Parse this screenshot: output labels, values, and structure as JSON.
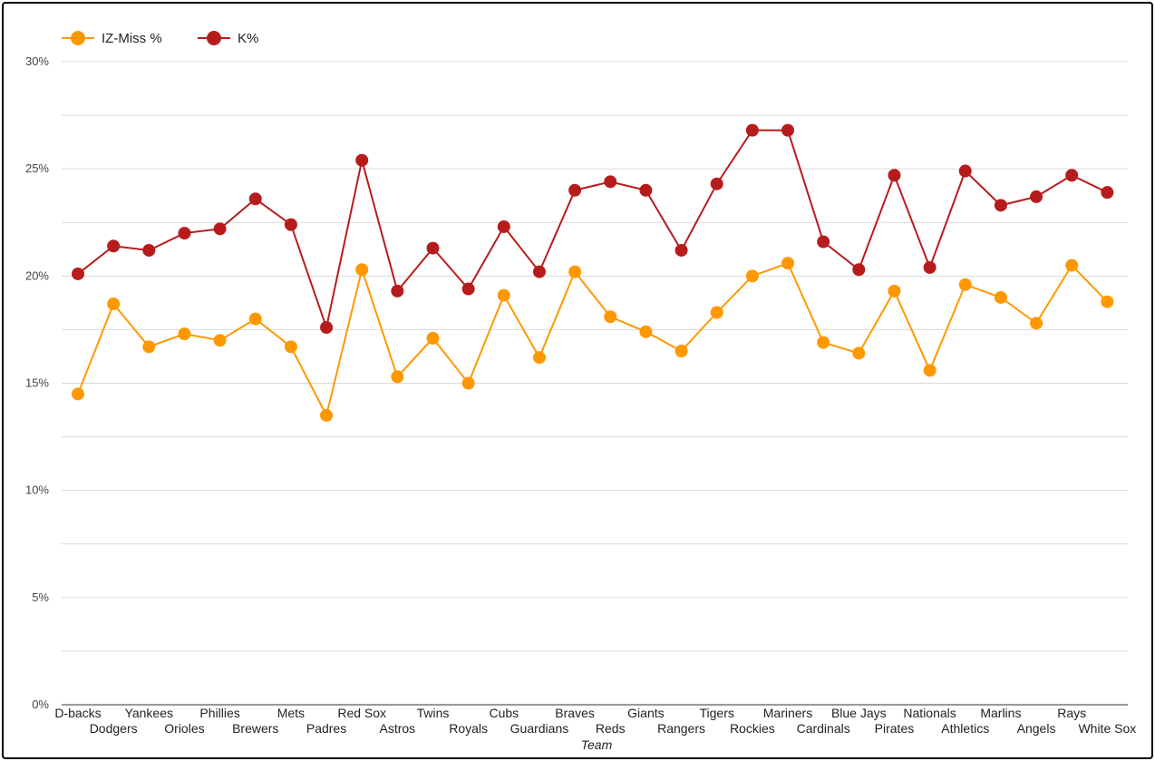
{
  "chart_data": {
    "type": "line",
    "title": "",
    "xlabel": "Team",
    "ylabel": "",
    "ylim": [
      0,
      30
    ],
    "yticks": [
      "0%",
      "5%",
      "10%",
      "15%",
      "20%",
      "25%",
      "30%"
    ],
    "grid": true,
    "legend_position": "top-left",
    "categories": [
      "D-backs",
      "Dodgers",
      "Yankees",
      "Orioles",
      "Phillies",
      "Brewers",
      "Mets",
      "Padres",
      "Red Sox",
      "Astros",
      "Twins",
      "Royals",
      "Cubs",
      "Guardians",
      "Braves",
      "Reds",
      "Giants",
      "Rangers",
      "Tigers",
      "Rockies",
      "Mariners",
      "Cardinals",
      "Blue Jays",
      "Pirates",
      "Nationals",
      "Athletics",
      "Marlins",
      "Angels",
      "Rays",
      "White Sox"
    ],
    "series": [
      {
        "name": "IZ-Miss %",
        "color": "#ff9800",
        "values": [
          14.5,
          18.7,
          16.7,
          17.3,
          17.0,
          18.0,
          16.7,
          13.5,
          20.3,
          15.3,
          17.1,
          15.0,
          19.1,
          16.2,
          20.2,
          18.1,
          17.4,
          16.5,
          18.3,
          20.0,
          20.6,
          16.9,
          16.4,
          19.3,
          15.6,
          19.6,
          19.0,
          17.8,
          20.5,
          18.8
        ]
      },
      {
        "name": "K%",
        "color": "#b71c1c",
        "values": [
          20.1,
          21.4,
          21.2,
          22.0,
          22.2,
          23.6,
          22.4,
          17.6,
          25.4,
          19.3,
          21.3,
          19.4,
          22.3,
          20.2,
          24.0,
          24.4,
          24.0,
          21.2,
          24.3,
          26.8,
          26.8,
          21.6,
          20.3,
          24.7,
          20.4,
          24.9,
          23.3,
          23.7,
          24.7,
          23.9
        ]
      }
    ]
  }
}
